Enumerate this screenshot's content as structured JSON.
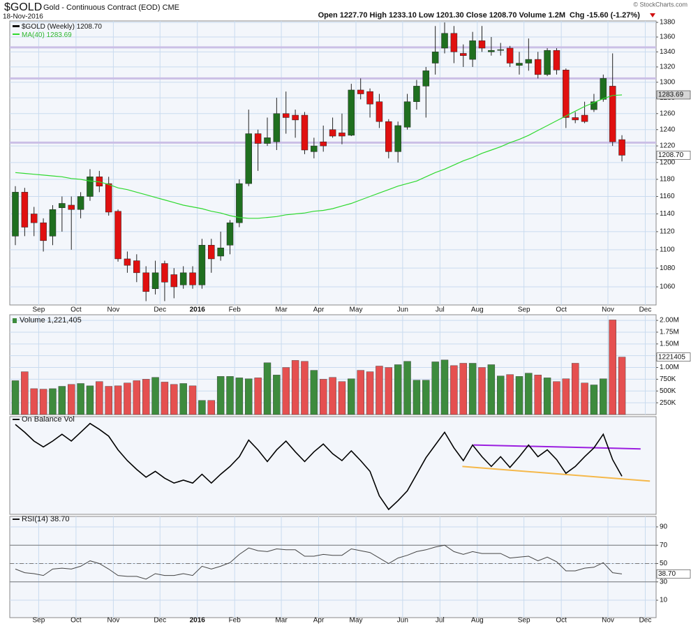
{
  "header": {
    "symbol": "$GOLD",
    "name": "Gold - Continuous Contract (EOD) CME",
    "date": "18-Nov-2016",
    "quote": "Open 1227.70 High 1233.10 Low 1201.30 Close 1208.70 Volume 1.2M",
    "change": "Chg -15.60 (-1.27%)",
    "copyright": "© StockCharts.com"
  },
  "chart_data": [
    {
      "type": "candlestick",
      "log_scale": true,
      "grid": true,
      "categories": [
        null,
        null,
        null,
        "Sep",
        null,
        null,
        null,
        "Oct",
        null,
        null,
        null,
        "Nov",
        null,
        null,
        null,
        null,
        "Dec",
        null,
        null,
        null,
        "2016",
        null,
        null,
        null,
        "Feb",
        null,
        null,
        null,
        null,
        "Mar",
        null,
        null,
        null,
        "Apr",
        null,
        null,
        null,
        "May",
        null,
        null,
        null,
        null,
        "Jun",
        null,
        null,
        null,
        "Jul",
        null,
        null,
        null,
        "Aug",
        null,
        null,
        null,
        null,
        "Sep",
        null,
        null,
        null,
        "Oct",
        null,
        null,
        null,
        null,
        "Nov",
        null,
        null,
        null,
        "Dec"
      ],
      "ylim": [
        1041,
        1382
      ],
      "yticks": [
        1060,
        1080,
        1100,
        1120,
        1140,
        1160,
        1180,
        1200,
        1220,
        1240,
        1260,
        1280,
        1300,
        1320,
        1340,
        1360,
        1380
      ],
      "hlines": {
        "color": "#cbbfe6",
        "values": [
          1346,
          1305,
          1224
        ]
      },
      "series": [
        {
          "name": "$GOLD (Weekly)",
          "last_label": "1208.70",
          "up_color": "#1f6f1f",
          "down_color": "#e01010",
          "open": [
            1115,
            1165,
            1140,
            1130,
            1115,
            1147,
            1150,
            1145,
            1160,
            1183,
            1175,
            1143,
            1090,
            1088,
            1075,
            1058,
            1085,
            1073,
            1062,
            1075,
            1062,
            1105,
            1093,
            1105,
            1130,
            1175,
            1235,
            1223,
            1225,
            1260,
            1258,
            1258,
            1213,
            1225,
            1240,
            1236,
            1233,
            1290,
            1288,
            1275,
            1250,
            1213,
            1243,
            1275,
            1295,
            1325,
            1345,
            1365,
            1338,
            1330,
            1355,
            1340,
            1342,
            1345,
            1322,
            1325,
            1330,
            1310,
            1342,
            1316,
            1255,
            1258,
            1265,
            1278,
            1295,
            1227.7,
            null,
            null,
            null
          ],
          "high": [
            1172,
            1170,
            1148,
            1135,
            1150,
            1160,
            1160,
            1165,
            1192,
            1190,
            1183,
            1145,
            1098,
            1095,
            1082,
            1088,
            1088,
            1080,
            1082,
            1082,
            1112,
            1112,
            1120,
            1133,
            1180,
            1265,
            1240,
            1255,
            1280,
            1288,
            1265,
            1262,
            1230,
            1245,
            1255,
            1260,
            1298,
            1305,
            1292,
            1285,
            1253,
            1250,
            1285,
            1303,
            1320,
            1375,
            1380,
            1375,
            1350,
            1367,
            1375,
            1360,
            1352,
            1348,
            1340,
            1358,
            1340,
            1345,
            1345,
            1318,
            1262,
            1275,
            1285,
            1310,
            1338,
            1233.1,
            null,
            null,
            null
          ],
          "low": [
            1105,
            1115,
            1115,
            1098,
            1105,
            1120,
            1100,
            1135,
            1155,
            1165,
            1138,
            1087,
            1075,
            1065,
            1045,
            1052,
            1045,
            1048,
            1058,
            1058,
            1058,
            1075,
            1088,
            1095,
            1125,
            1172,
            1190,
            1220,
            1215,
            1235,
            1230,
            1210,
            1205,
            1213,
            1230,
            1222,
            1232,
            1278,
            1255,
            1242,
            1205,
            1200,
            1240,
            1265,
            1255,
            1310,
            1338,
            1325,
            1320,
            1320,
            1340,
            1335,
            1335,
            1320,
            1310,
            1315,
            1305,
            1308,
            1310,
            1242,
            1248,
            1248,
            1262,
            1275,
            1220,
            1201.3,
            null,
            null,
            null
          ],
          "close": [
            1165,
            1125,
            1130,
            1110,
            1145,
            1152,
            1145,
            1160,
            1183,
            1172,
            1142,
            1090,
            1083,
            1075,
            1055,
            1075,
            1065,
            1060,
            1075,
            1062,
            1105,
            1090,
            1102,
            1130,
            1175,
            1235,
            1223,
            1230,
            1260,
            1255,
            1252,
            1215,
            1220,
            1220,
            1232,
            1232,
            1290,
            1285,
            1272,
            1250,
            1213,
            1245,
            1275,
            1295,
            1315,
            1340,
            1365,
            1340,
            1335,
            1355,
            1345,
            1342,
            1343,
            1325,
            1325,
            1330,
            1310,
            1342,
            1316,
            1255,
            1252,
            1250,
            1275,
            1305,
            1225,
            1208.7,
            null,
            null,
            null
          ]
        },
        {
          "name": "MA(40)",
          "last_label": "1283.69",
          "color": "#2fd92f",
          "values": [
            1188,
            1187,
            1186,
            1185,
            1184,
            1183,
            1181,
            1180,
            1178,
            1177,
            1174,
            1170,
            1168,
            1165,
            1162,
            1159,
            1156,
            1153,
            1150,
            1148,
            1146,
            1143,
            1141,
            1138,
            1136,
            1135,
            1135,
            1136,
            1137,
            1139,
            1140,
            1141,
            1143,
            1144,
            1146,
            1149,
            1152,
            1156,
            1160,
            1164,
            1168,
            1172,
            1175,
            1178,
            1183,
            1188,
            1192,
            1197,
            1202,
            1206,
            1211,
            1215,
            1219,
            1224,
            1228,
            1233,
            1239,
            1245,
            1251,
            1257,
            1263,
            1269,
            1274,
            1279,
            1283,
            1283.69,
            null,
            null,
            null
          ]
        }
      ]
    },
    {
      "type": "bar",
      "grid": true,
      "ylim": [
        0,
        2120000
      ],
      "yticks": [
        {
          "value": 250000,
          "label": "250K"
        },
        {
          "value": 500000,
          "label": "500K"
        },
        {
          "value": 750000,
          "label": "750K"
        },
        {
          "value": 1000000,
          "label": "1.00M"
        },
        {
          "value": 1250000,
          "label": "1.25M"
        },
        {
          "value": 1500000,
          "label": "1.50M"
        },
        {
          "value": 1750000,
          "label": "1.75M"
        },
        {
          "value": 2000000,
          "label": "2.00M"
        }
      ],
      "series": [
        {
          "name": "Volume",
          "legend_label": "1,221,405",
          "last_label": "1221405",
          "up_color": "#3d8b3d",
          "down_color": "#e55050",
          "values": [
            720000,
            910000,
            550000,
            540000,
            550000,
            600000,
            640000,
            660000,
            610000,
            700000,
            600000,
            610000,
            670000,
            720000,
            750000,
            790000,
            690000,
            640000,
            660000,
            610000,
            300000,
            300000,
            810000,
            810000,
            780000,
            760000,
            780000,
            1100000,
            840000,
            1000000,
            1150000,
            1130000,
            940000,
            750000,
            790000,
            700000,
            760000,
            940000,
            910000,
            1030000,
            1000000,
            1060000,
            1130000,
            730000,
            730000,
            1120000,
            1160000,
            1040000,
            1090000,
            1090000,
            1000000,
            1060000,
            820000,
            850000,
            810000,
            880000,
            840000,
            780000,
            700000,
            760000,
            1090000,
            670000,
            630000,
            760000,
            2010000,
            1221405,
            null,
            null,
            null
          ]
        }
      ]
    },
    {
      "type": "line",
      "title": "On Balance Vol",
      "ylim": [
        0,
        10
      ],
      "series": [
        {
          "name": "On Balance Vol",
          "color": "#000000",
          "values": [
            9.2,
            8.4,
            7.5,
            6.9,
            7.5,
            8.2,
            7.5,
            8.4,
            9.3,
            8.7,
            8.0,
            6.6,
            5.5,
            4.6,
            3.8,
            4.4,
            3.7,
            3.2,
            3.5,
            3.2,
            4.1,
            3.2,
            4.1,
            4.9,
            5.9,
            7.6,
            6.6,
            5.4,
            6.6,
            7.5,
            6.4,
            5.4,
            6.4,
            7.2,
            6.2,
            5.5,
            6.5,
            5.5,
            4.4,
            1.9,
            0.5,
            1.4,
            2.4,
            4.1,
            5.8,
            7.1,
            8.4,
            6.8,
            5.5,
            7.1,
            5.9,
            4.9,
            5.9,
            4.8,
            5.9,
            7.1,
            5.9,
            6.6,
            5.6,
            4.2,
            4.9,
            5.9,
            6.8,
            8.2,
            5.6,
            3.9,
            null,
            null,
            null
          ]
        }
      ],
      "trendlines": [
        {
          "color": "#9b1ee0",
          "x": [
            49.1,
            67.0
          ],
          "y": [
            7.1,
            6.7
          ]
        },
        {
          "color": "#f5b84a",
          "x": [
            47.9,
            68.0
          ],
          "y": [
            4.9,
            3.4
          ]
        }
      ]
    },
    {
      "type": "line",
      "grid": true,
      "ylim": [
        -9,
        101.4
      ],
      "yticks": [
        10,
        30,
        50,
        70,
        90
      ],
      "levels": [
        30,
        70
      ],
      "midline": 50,
      "series": [
        {
          "name": "RSI(14)",
          "last_label": "38.70",
          "color": "#444444",
          "values": [
            44,
            40,
            39,
            37,
            44,
            45,
            44,
            47,
            53,
            50,
            44,
            37,
            36,
            36,
            33,
            39,
            37,
            37,
            39,
            37,
            47,
            44,
            47,
            51,
            60,
            67,
            64,
            63,
            66,
            65,
            65,
            58,
            58,
            60,
            59,
            59,
            66,
            64,
            62,
            56,
            50,
            56,
            59,
            63,
            65,
            68,
            70,
            63,
            60,
            63,
            61,
            61,
            61,
            56,
            57,
            58,
            53,
            57,
            52,
            42,
            42,
            45,
            46,
            51,
            40,
            38.7,
            null,
            null,
            null
          ]
        }
      ]
    }
  ]
}
